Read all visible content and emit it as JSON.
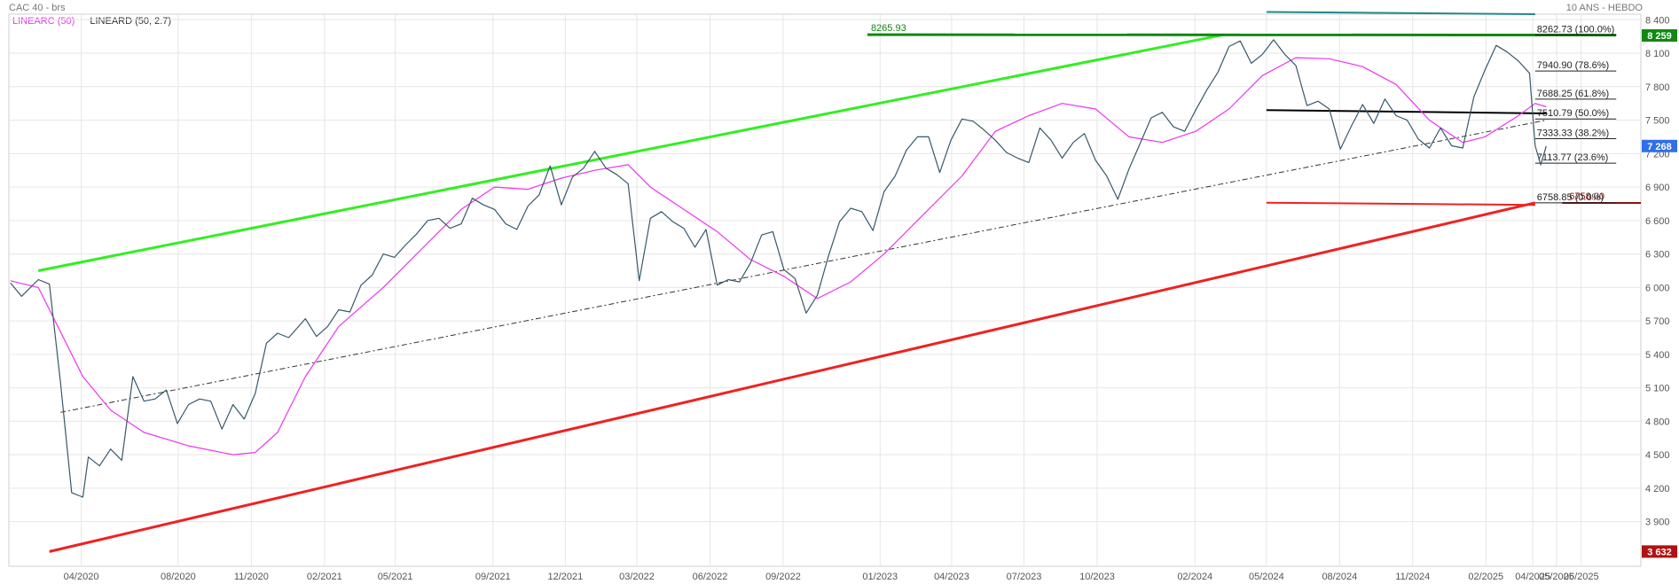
{
  "header": {
    "title": "CAC 40 - brs",
    "period": "10 ANS - HEBDO"
  },
  "legend": {
    "ma_label": "LINEARC (50)",
    "reg_label": "LINEARD (50, 2.7)"
  },
  "colors": {
    "price": "#37586b",
    "ma": "#ee33ee",
    "regression": "#333333",
    "uptrend": "#33ee22",
    "downtrend": "#ee2222",
    "resistance": "#118811",
    "top_channel": "#22888a",
    "grid": "#e6e6e6",
    "last_price_badge": "#2f6fe8",
    "high_badge": "#118811",
    "low_badge": "#b11111",
    "support_right": "#8a1111"
  },
  "chart_data": {
    "type": "line",
    "title": "CAC 40 - brs",
    "subtitle": "10 ANS - HEBDO",
    "xlabel": "",
    "ylabel": "",
    "x_ticks": [
      "04/2020",
      "08/2020",
      "11/2020",
      "02/2021",
      "05/2021",
      "09/2021",
      "12/2021",
      "03/2022",
      "06/2022",
      "09/2022",
      "01/2023",
      "04/2023",
      "07/2023",
      "10/2023",
      "02/2024",
      "05/2024",
      "08/2024",
      "11/2024",
      "02/2025",
      "04/2025",
      "05/2025",
      "06/2025"
    ],
    "y_ticks": [
      "3 900",
      "4 200",
      "4 500",
      "4 800",
      "5 100",
      "5 400",
      "5 700",
      "6 000",
      "6 300",
      "6 600",
      "6 900",
      "7 200",
      "7 500",
      "7 800",
      "8 100",
      "8 400"
    ],
    "x_range": [
      "2020-01-01",
      "2025-08-15"
    ],
    "y_range": [
      3500,
      8450
    ],
    "grid": true,
    "legend_position": "top-left",
    "price_series": {
      "name": "CAC 40 - brs",
      "points": [
        [
          "2020-01-03",
          6040
        ],
        [
          "2020-01-17",
          5920
        ],
        [
          "2020-02-07",
          6070
        ],
        [
          "2020-02-21",
          6030
        ],
        [
          "2020-03-06",
          5140
        ],
        [
          "2020-03-20",
          4160
        ],
        [
          "2020-04-03",
          4120
        ],
        [
          "2020-04-10",
          4480
        ],
        [
          "2020-04-24",
          4400
        ],
        [
          "2020-05-08",
          4550
        ],
        [
          "2020-05-22",
          4450
        ],
        [
          "2020-06-05",
          5200
        ],
        [
          "2020-06-19",
          4980
        ],
        [
          "2020-07-03",
          5000
        ],
        [
          "2020-07-17",
          5080
        ],
        [
          "2020-07-31",
          4780
        ],
        [
          "2020-08-14",
          4950
        ],
        [
          "2020-08-28",
          5000
        ],
        [
          "2020-09-11",
          4980
        ],
        [
          "2020-09-25",
          4730
        ],
        [
          "2020-10-09",
          4950
        ],
        [
          "2020-10-23",
          4820
        ],
        [
          "2020-11-06",
          5050
        ],
        [
          "2020-11-20",
          5500
        ],
        [
          "2020-12-04",
          5590
        ],
        [
          "2020-12-18",
          5550
        ],
        [
          "2021-01-08",
          5720
        ],
        [
          "2021-01-22",
          5560
        ],
        [
          "2021-02-05",
          5650
        ],
        [
          "2021-02-19",
          5800
        ],
        [
          "2021-03-05",
          5780
        ],
        [
          "2021-03-19",
          6020
        ],
        [
          "2021-04-02",
          6110
        ],
        [
          "2021-04-16",
          6300
        ],
        [
          "2021-04-30",
          6270
        ],
        [
          "2021-05-14",
          6380
        ],
        [
          "2021-05-28",
          6480
        ],
        [
          "2021-06-11",
          6600
        ],
        [
          "2021-06-25",
          6620
        ],
        [
          "2021-07-09",
          6530
        ],
        [
          "2021-07-23",
          6570
        ],
        [
          "2021-08-06",
          6800
        ],
        [
          "2021-08-20",
          6740
        ],
        [
          "2021-09-03",
          6700
        ],
        [
          "2021-09-17",
          6570
        ],
        [
          "2021-10-01",
          6520
        ],
        [
          "2021-10-15",
          6730
        ],
        [
          "2021-10-29",
          6830
        ],
        [
          "2021-11-12",
          7090
        ],
        [
          "2021-11-26",
          6740
        ],
        [
          "2021-12-10",
          6990
        ],
        [
          "2021-12-24",
          7070
        ],
        [
          "2022-01-07",
          7220
        ],
        [
          "2022-01-21",
          7070
        ],
        [
          "2022-02-04",
          7010
        ],
        [
          "2022-02-18",
          6930
        ],
        [
          "2022-03-04",
          6060
        ],
        [
          "2022-03-18",
          6620
        ],
        [
          "2022-04-01",
          6680
        ],
        [
          "2022-04-15",
          6590
        ],
        [
          "2022-04-29",
          6530
        ],
        [
          "2022-05-13",
          6360
        ],
        [
          "2022-05-27",
          6520
        ],
        [
          "2022-06-10",
          6020
        ],
        [
          "2022-06-24",
          6070
        ],
        [
          "2022-07-08",
          6050
        ],
        [
          "2022-07-22",
          6220
        ],
        [
          "2022-08-05",
          6470
        ],
        [
          "2022-08-19",
          6500
        ],
        [
          "2022-09-02",
          6160
        ],
        [
          "2022-09-16",
          6080
        ],
        [
          "2022-09-30",
          5770
        ],
        [
          "2022-10-14",
          5930
        ],
        [
          "2022-10-28",
          6280
        ],
        [
          "2022-11-11",
          6590
        ],
        [
          "2022-11-25",
          6710
        ],
        [
          "2022-12-09",
          6680
        ],
        [
          "2022-12-23",
          6510
        ],
        [
          "2023-01-06",
          6860
        ],
        [
          "2023-01-20",
          7000
        ],
        [
          "2023-02-03",
          7230
        ],
        [
          "2023-02-17",
          7350
        ],
        [
          "2023-03-03",
          7350
        ],
        [
          "2023-03-17",
          7030
        ],
        [
          "2023-03-31",
          7320
        ],
        [
          "2023-04-14",
          7510
        ],
        [
          "2023-04-28",
          7490
        ],
        [
          "2023-05-12",
          7410
        ],
        [
          "2023-05-26",
          7320
        ],
        [
          "2023-06-09",
          7210
        ],
        [
          "2023-06-23",
          7160
        ],
        [
          "2023-07-07",
          7120
        ],
        [
          "2023-07-21",
          7430
        ],
        [
          "2023-08-04",
          7320
        ],
        [
          "2023-08-18",
          7160
        ],
        [
          "2023-09-01",
          7300
        ],
        [
          "2023-09-15",
          7380
        ],
        [
          "2023-09-29",
          7140
        ],
        [
          "2023-10-13",
          7000
        ],
        [
          "2023-10-27",
          6790
        ],
        [
          "2023-11-10",
          7060
        ],
        [
          "2023-11-24",
          7290
        ],
        [
          "2023-12-08",
          7520
        ],
        [
          "2023-12-22",
          7570
        ],
        [
          "2024-01-05",
          7440
        ],
        [
          "2024-01-19",
          7400
        ],
        [
          "2024-02-02",
          7590
        ],
        [
          "2024-02-16",
          7770
        ],
        [
          "2024-03-01",
          7930
        ],
        [
          "2024-03-15",
          8160
        ],
        [
          "2024-03-29",
          8210
        ],
        [
          "2024-04-12",
          8010
        ],
        [
          "2024-04-26",
          8090
        ],
        [
          "2024-05-10",
          8220
        ],
        [
          "2024-05-24",
          8090
        ],
        [
          "2024-06-07",
          7990
        ],
        [
          "2024-06-21",
          7630
        ],
        [
          "2024-07-05",
          7670
        ],
        [
          "2024-07-19",
          7600
        ],
        [
          "2024-08-02",
          7240
        ],
        [
          "2024-08-16",
          7450
        ],
        [
          "2024-08-30",
          7640
        ],
        [
          "2024-09-13",
          7470
        ],
        [
          "2024-09-27",
          7690
        ],
        [
          "2024-10-11",
          7540
        ],
        [
          "2024-10-25",
          7500
        ],
        [
          "2024-11-08",
          7330
        ],
        [
          "2024-11-22",
          7250
        ],
        [
          "2024-12-06",
          7430
        ],
        [
          "2024-12-20",
          7270
        ],
        [
          "2025-01-03",
          7250
        ],
        [
          "2025-01-17",
          7710
        ],
        [
          "2025-01-31",
          7950
        ],
        [
          "2025-02-14",
          8170
        ],
        [
          "2025-02-28",
          8110
        ],
        [
          "2025-03-14",
          8030
        ],
        [
          "2025-03-28",
          7920
        ],
        [
          "2025-04-04",
          7270
        ],
        [
          "2025-04-11",
          7100
        ],
        [
          "2025-04-18",
          7268
        ]
      ]
    },
    "ma_series": {
      "name": "LINEARC (50)",
      "points": [
        [
          "2020-01-03",
          6060
        ],
        [
          "2020-02-07",
          6000
        ],
        [
          "2020-03-06",
          5600
        ],
        [
          "2020-04-03",
          5200
        ],
        [
          "2020-05-08",
          4900
        ],
        [
          "2020-06-19",
          4700
        ],
        [
          "2020-08-14",
          4580
        ],
        [
          "2020-10-09",
          4500
        ],
        [
          "2020-11-06",
          4520
        ],
        [
          "2020-12-04",
          4700
        ],
        [
          "2021-01-08",
          5200
        ],
        [
          "2021-02-19",
          5650
        ],
        [
          "2021-04-16",
          6000
        ],
        [
          "2021-06-11",
          6400
        ],
        [
          "2021-07-23",
          6700
        ],
        [
          "2021-09-03",
          6900
        ],
        [
          "2021-10-15",
          6880
        ],
        [
          "2021-11-26",
          6980
        ],
        [
          "2022-01-07",
          7050
        ],
        [
          "2022-02-18",
          7100
        ],
        [
          "2022-03-18",
          6900
        ],
        [
          "2022-04-29",
          6700
        ],
        [
          "2022-06-10",
          6500
        ],
        [
          "2022-07-22",
          6250
        ],
        [
          "2022-09-02",
          6100
        ],
        [
          "2022-10-14",
          5900
        ],
        [
          "2022-11-25",
          6050
        ],
        [
          "2023-01-06",
          6300
        ],
        [
          "2023-02-17",
          6600
        ],
        [
          "2023-04-14",
          7000
        ],
        [
          "2023-05-26",
          7400
        ],
        [
          "2023-07-07",
          7540
        ],
        [
          "2023-08-18",
          7650
        ],
        [
          "2023-09-29",
          7600
        ],
        [
          "2023-11-10",
          7350
        ],
        [
          "2023-12-22",
          7300
        ],
        [
          "2024-02-02",
          7400
        ],
        [
          "2024-03-15",
          7600
        ],
        [
          "2024-04-26",
          7900
        ],
        [
          "2024-06-07",
          8060
        ],
        [
          "2024-07-19",
          8050
        ],
        [
          "2024-08-30",
          7980
        ],
        [
          "2024-10-11",
          7820
        ],
        [
          "2024-11-22",
          7500
        ],
        [
          "2025-01-03",
          7300
        ],
        [
          "2025-01-31",
          7350
        ],
        [
          "2025-03-14",
          7540
        ],
        [
          "2025-04-04",
          7650
        ],
        [
          "2025-04-18",
          7620
        ]
      ]
    },
    "regression_line": {
      "name": "LINEARD (50, 2.7)",
      "start": [
        "2020-03-06",
        4880
      ],
      "end": [
        "2025-04-18",
        7500
      ]
    },
    "uptrend_line": {
      "start": [
        "2020-02-07",
        6150
      ],
      "end": [
        "2024-03-08",
        8265.93
      ]
    },
    "downtrend_line": {
      "start": [
        "2020-02-21",
        3632
      ],
      "end": [
        "2025-04-04",
        6758.85
      ]
    },
    "resistance_line": {
      "start": [
        "2022-12-16",
        8265.93
      ],
      "end": [
        "2025-07-15",
        8262.73
      ]
    },
    "top_channel_line": {
      "start": [
        "2024-05-01",
        8470
      ],
      "end": [
        "2025-04-04",
        8450
      ]
    },
    "red_support_segment": {
      "start": [
        "2024-05-01",
        6760
      ],
      "end": [
        "2025-04-04",
        6740
      ]
    },
    "black_segment": {
      "start": [
        "2024-05-01",
        7590
      ],
      "end": [
        "2025-04-18",
        7560
      ]
    },
    "support_level": {
      "value": 6758.0,
      "label": "6758.00",
      "start": "2025-05-08",
      "end": "2025-08-15"
    },
    "resistance_label": "8265.93",
    "fibonacci": {
      "start": "2025-04-04",
      "end": "2025-07-15",
      "levels": [
        {
          "value": 8262.73,
          "label": "8262.73",
          "pct": "(100.0%)"
        },
        {
          "value": 7940.9,
          "label": "7940.90",
          "pct": "(78.6%)"
        },
        {
          "value": 7688.25,
          "label": "7688.25",
          "pct": "(61.8%)"
        },
        {
          "value": 7510.79,
          "label": "7510.79",
          "pct": "(50.0%)"
        },
        {
          "value": 7333.33,
          "label": "7333.33",
          "pct": "(38.2%)"
        },
        {
          "value": 7113.77,
          "label": "7113.77",
          "pct": "(23.6%)"
        },
        {
          "value": 6758.85,
          "label": "6758.85",
          "pct": "(0.0%)"
        }
      ]
    },
    "badges": [
      {
        "value": 8259,
        "label": "8 259",
        "color": "#118811"
      },
      {
        "value": 7268,
        "label": "7 268",
        "color": "#2f6fe8"
      },
      {
        "value": 3632,
        "label": "3 632",
        "color": "#b11111"
      }
    ]
  }
}
